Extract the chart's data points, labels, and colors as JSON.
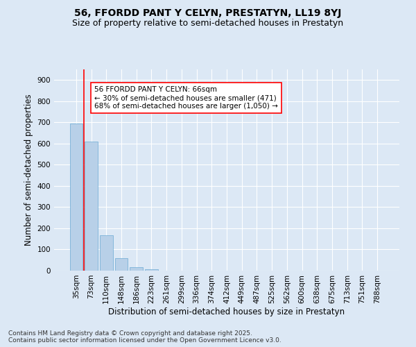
{
  "title": "56, FFORDD PANT Y CELYN, PRESTATYN, LL19 8YJ",
  "subtitle": "Size of property relative to semi-detached houses in Prestatyn",
  "xlabel": "Distribution of semi-detached houses by size in Prestatyn",
  "ylabel": "Number of semi-detached properties",
  "categories": [
    "35sqm",
    "73sqm",
    "110sqm",
    "148sqm",
    "186sqm",
    "223sqm",
    "261sqm",
    "299sqm",
    "336sqm",
    "374sqm",
    "412sqm",
    "449sqm",
    "487sqm",
    "525sqm",
    "562sqm",
    "600sqm",
    "638sqm",
    "675sqm",
    "713sqm",
    "751sqm",
    "788sqm"
  ],
  "values": [
    693,
    610,
    168,
    60,
    18,
    8,
    0,
    0,
    0,
    0,
    0,
    0,
    0,
    0,
    0,
    0,
    0,
    0,
    0,
    0,
    0
  ],
  "bar_color": "#b8d0e8",
  "bar_edge_color": "#6aaad4",
  "vline_x": 0.5,
  "vline_color": "red",
  "annotation_text": "56 FFORDD PANT Y CELYN: 66sqm\n← 30% of semi-detached houses are smaller (471)\n68% of semi-detached houses are larger (1,050) →",
  "annotation_box_color": "white",
  "annotation_box_edge_color": "red",
  "ylim": [
    0,
    950
  ],
  "yticks": [
    0,
    100,
    200,
    300,
    400,
    500,
    600,
    700,
    800,
    900
  ],
  "bg_color": "#dce8f5",
  "plot_bg_color": "#dce8f5",
  "grid_color": "white",
  "footer": "Contains HM Land Registry data © Crown copyright and database right 2025.\nContains public sector information licensed under the Open Government Licence v3.0.",
  "title_fontsize": 10,
  "subtitle_fontsize": 9,
  "xlabel_fontsize": 8.5,
  "ylabel_fontsize": 8.5,
  "tick_fontsize": 7.5,
  "annotation_fontsize": 7.5,
  "footer_fontsize": 6.5
}
